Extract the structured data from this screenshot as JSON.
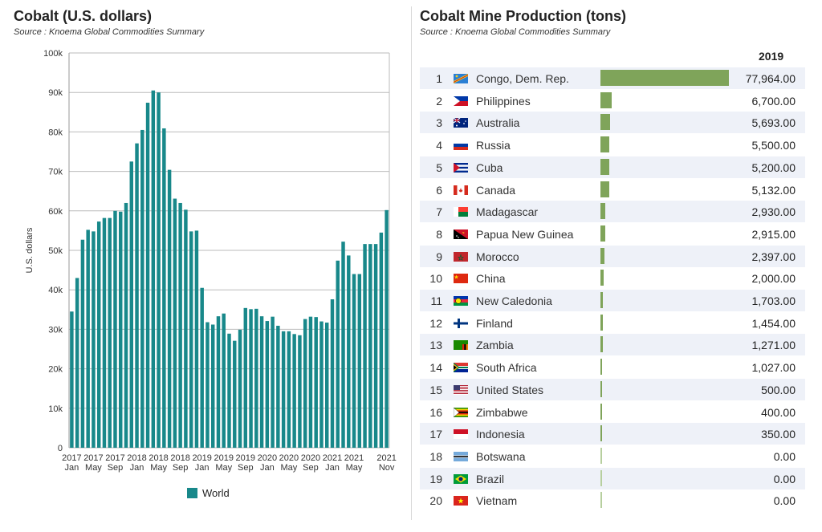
{
  "left": {
    "title": "Cobalt (U.S. dollars)",
    "source": "Source : Knoema Global Commodities Summary"
  },
  "right": {
    "title": "Cobalt Mine Production (tons)",
    "source": "Source : Knoema Global Commodities Summary",
    "year_header": "2019"
  },
  "colors": {
    "bar": "#18888a",
    "prod_bar": "#7fa45a",
    "row_alt": "#eef1f8"
  },
  "chart_data": [
    {
      "type": "bar",
      "ylabel": "U.S. dollars",
      "ylim": [
        0,
        100000
      ],
      "yticks": [
        "0",
        "10k",
        "20k",
        "30k",
        "40k",
        "50k",
        "60k",
        "70k",
        "80k",
        "90k",
        "100k"
      ],
      "xtick_labels": [
        {
          "year": "2017",
          "month": "Jan"
        },
        {
          "year": "2017",
          "month": "May"
        },
        {
          "year": "2017",
          "month": "Sep"
        },
        {
          "year": "2018",
          "month": "Jan"
        },
        {
          "year": "2018",
          "month": "May"
        },
        {
          "year": "2018",
          "month": "Sep"
        },
        {
          "year": "2019",
          "month": "Jan"
        },
        {
          "year": "2019",
          "month": "May"
        },
        {
          "year": "2019",
          "month": "Sep"
        },
        {
          "year": "2020",
          "month": "Jan"
        },
        {
          "year": "2020",
          "month": "May"
        },
        {
          "year": "2020",
          "month": "Sep"
        },
        {
          "year": "2021",
          "month": "Jan"
        },
        {
          "year": "2021",
          "month": "May"
        },
        {
          "year": "2021",
          "month": "Nov"
        }
      ],
      "legend": [
        "World"
      ],
      "series": [
        {
          "name": "World",
          "values": [
            34500,
            43000,
            52700,
            55200,
            54800,
            57300,
            58200,
            58200,
            60000,
            59800,
            62000,
            72500,
            77100,
            80500,
            87400,
            90500,
            90000,
            80900,
            70400,
            63100,
            62000,
            60300,
            54800,
            55000,
            40500,
            31800,
            31200,
            33300,
            34000,
            28900,
            27100,
            29900,
            35400,
            35100,
            35200,
            33300,
            32100,
            33200,
            30900,
            29500,
            29500,
            28800,
            28500,
            32600,
            33200,
            33100,
            32000,
            31700,
            37600,
            47400,
            52200,
            48700,
            44000,
            44000,
            51600,
            51600,
            51600,
            54500,
            60200
          ]
        }
      ]
    },
    {
      "type": "bar",
      "categories": [
        "Congo, Dem. Rep.",
        "Philippines",
        "Australia",
        "Russia",
        "Cuba",
        "Canada",
        "Madagascar",
        "Papua New Guinea",
        "Morocco",
        "China",
        "New Caledonia",
        "Finland",
        "Zambia",
        "South Africa",
        "United States",
        "Zimbabwe",
        "Indonesia",
        "Botswana",
        "Brazil",
        "Vietnam"
      ],
      "ranks": [
        "1",
        "2",
        "3",
        "4",
        "5",
        "6",
        "7",
        "8",
        "9",
        "10",
        "11",
        "12",
        "13",
        "14",
        "15",
        "16",
        "17",
        "18",
        "19",
        "20"
      ],
      "values": [
        77964,
        6700,
        5693,
        5500,
        5200,
        5132,
        2930,
        2915,
        2397,
        2000,
        1703,
        1454,
        1271,
        1027,
        500,
        400,
        350,
        0,
        0,
        0
      ],
      "value_labels": [
        "77,964.00",
        "6,700.00",
        "5,693.00",
        "5,500.00",
        "5,200.00",
        "5,132.00",
        "2,930.00",
        "2,915.00",
        "2,397.00",
        "2,000.00",
        "1,703.00",
        "1,454.00",
        "1,271.00",
        "1,027.00",
        "500.00",
        "400.00",
        "350.00",
        "0.00",
        "0.00",
        "0.00"
      ],
      "flags": [
        "flag-congo-dr-icon",
        "flag-philippines-icon",
        "flag-australia-icon",
        "flag-russia-icon",
        "flag-cuba-icon",
        "flag-canada-icon",
        "flag-madagascar-icon",
        "flag-png-icon",
        "flag-morocco-icon",
        "flag-china-icon",
        "flag-new-caledonia-icon",
        "flag-finland-icon",
        "flag-zambia-icon",
        "flag-south-africa-icon",
        "flag-usa-icon",
        "flag-zimbabwe-icon",
        "flag-indonesia-icon",
        "flag-botswana-icon",
        "flag-brazil-icon",
        "flag-vietnam-icon"
      ]
    }
  ]
}
